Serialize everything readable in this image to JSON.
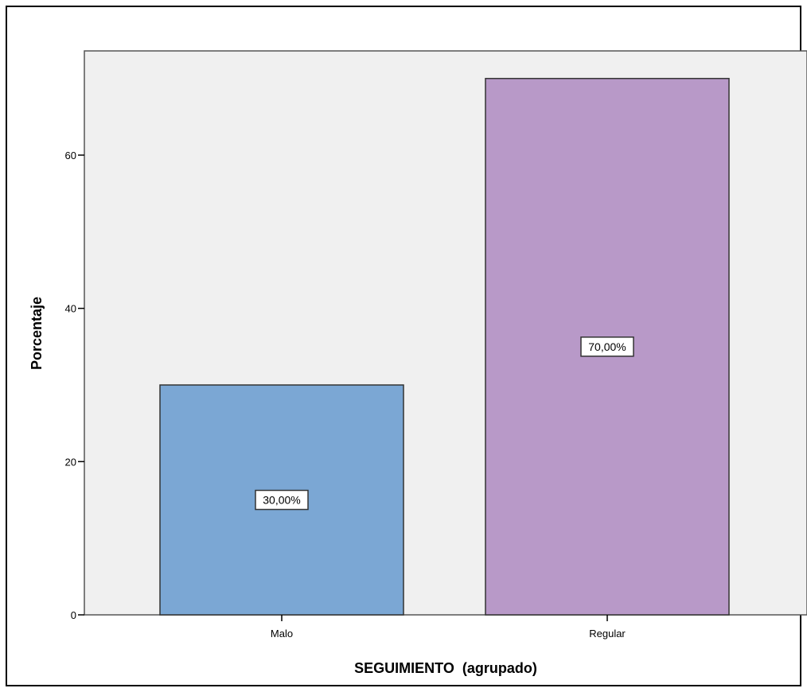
{
  "chart_data": {
    "type": "bar",
    "categories": [
      "Malo",
      "Regular"
    ],
    "values": [
      30,
      70
    ],
    "data_labels": [
      "30,00%",
      "70,00%"
    ],
    "colors": [
      "#7BA7D4",
      "#B899C8"
    ],
    "xlabel": "SEGUIMIENTO  (agrupado)",
    "ylabel": "Porcentaje",
    "ylim": [
      0,
      73.6
    ],
    "yticks": [
      0,
      20,
      40,
      60
    ],
    "ytick_labels": [
      "0",
      "20",
      "40",
      "60"
    ],
    "grid": false,
    "legend": "none",
    "plot_background": "#F0F0F0"
  }
}
